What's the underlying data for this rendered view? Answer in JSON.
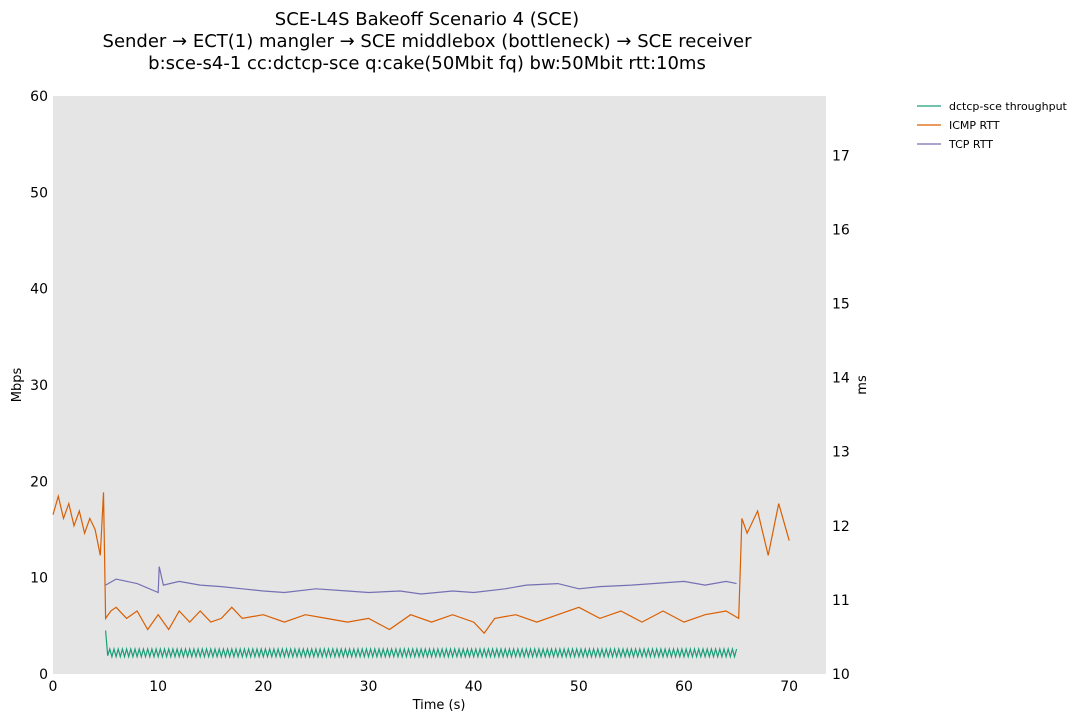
{
  "chart_data": {
    "type": "line",
    "title_lines": [
      "SCE-L4S Bakeoff Scenario 4 (SCE)",
      "Sender → ECT(1) mangler → SCE middlebox (bottleneck) → SCE receiver",
      "b:sce-s4-1 cc:dctcp-sce q:cake(50Mbit fq) bw:50Mbit rtt:10ms"
    ],
    "xlabel": "Time (s)",
    "ylabel_left": "Mbps",
    "ylabel_right": "ms",
    "xlim": [
      0,
      73.5
    ],
    "ylim_left": [
      0,
      60
    ],
    "ylim_right": [
      10,
      17.8
    ],
    "x_ticks": [
      0,
      10,
      20,
      30,
      40,
      50,
      60,
      70
    ],
    "y_ticks_left": [
      0,
      10,
      20,
      30,
      40,
      50,
      60
    ],
    "y_ticks_right": [
      10,
      11,
      12,
      13,
      14,
      15,
      16,
      17
    ],
    "grid": false,
    "legend_position": "outside top-right",
    "background": "#e5e5e5",
    "series": [
      {
        "name": "dctcp-sce throughput",
        "axis": "left",
        "color": "#1b9e77",
        "x_start": 5.0,
        "x_end": 65.0,
        "points": [
          [
            5.0,
            4.5
          ],
          [
            5.2,
            1.9
          ]
        ],
        "oscillation": {
          "low": 1.8,
          "high": 2.6,
          "period_s": 0.4
        }
      },
      {
        "name": "ICMP RTT",
        "axis": "right",
        "color": "#d95f02",
        "points": [
          [
            0,
            12.15
          ],
          [
            0.5,
            12.4
          ],
          [
            1,
            12.1
          ],
          [
            1.5,
            12.3
          ],
          [
            2,
            12.0
          ],
          [
            2.5,
            12.2
          ],
          [
            3,
            11.9
          ],
          [
            3.5,
            12.1
          ],
          [
            4,
            11.95
          ],
          [
            4.5,
            11.6
          ],
          [
            4.8,
            12.45
          ],
          [
            5.0,
            10.75
          ],
          [
            5.5,
            10.85
          ],
          [
            6,
            10.9
          ],
          [
            7,
            10.75
          ],
          [
            8,
            10.85
          ],
          [
            9,
            10.6
          ],
          [
            10,
            10.8
          ],
          [
            11,
            10.6
          ],
          [
            12,
            10.85
          ],
          [
            13,
            10.7
          ],
          [
            14,
            10.85
          ],
          [
            15,
            10.7
          ],
          [
            16,
            10.75
          ],
          [
            17,
            10.9
          ],
          [
            18,
            10.75
          ],
          [
            20,
            10.8
          ],
          [
            22,
            10.7
          ],
          [
            24,
            10.8
          ],
          [
            26,
            10.75
          ],
          [
            28,
            10.7
          ],
          [
            30,
            10.75
          ],
          [
            32,
            10.6
          ],
          [
            34,
            10.8
          ],
          [
            36,
            10.7
          ],
          [
            38,
            10.8
          ],
          [
            40,
            10.7
          ],
          [
            41,
            10.55
          ],
          [
            42,
            10.75
          ],
          [
            44,
            10.8
          ],
          [
            46,
            10.7
          ],
          [
            48,
            10.8
          ],
          [
            50,
            10.9
          ],
          [
            52,
            10.75
          ],
          [
            54,
            10.85
          ],
          [
            56,
            10.7
          ],
          [
            58,
            10.85
          ],
          [
            60,
            10.7
          ],
          [
            62,
            10.8
          ],
          [
            64,
            10.85
          ],
          [
            65.2,
            10.75
          ],
          [
            65.5,
            12.1
          ],
          [
            66,
            11.9
          ],
          [
            67,
            12.2
          ],
          [
            68,
            11.6
          ],
          [
            69,
            12.3
          ],
          [
            70,
            11.8
          ]
        ]
      },
      {
        "name": "TCP RTT",
        "axis": "right",
        "color": "#7570b3",
        "points": [
          [
            5,
            11.2
          ],
          [
            6,
            11.28
          ],
          [
            8,
            11.22
          ],
          [
            10,
            11.1
          ],
          [
            10.1,
            11.45
          ],
          [
            10.5,
            11.2
          ],
          [
            12,
            11.25
          ],
          [
            14,
            11.2
          ],
          [
            16,
            11.18
          ],
          [
            18,
            11.15
          ],
          [
            20,
            11.12
          ],
          [
            22,
            11.1
          ],
          [
            25,
            11.15
          ],
          [
            28,
            11.12
          ],
          [
            30,
            11.1
          ],
          [
            33,
            11.12
          ],
          [
            35,
            11.08
          ],
          [
            38,
            11.12
          ],
          [
            40,
            11.1
          ],
          [
            43,
            11.15
          ],
          [
            45,
            11.2
          ],
          [
            48,
            11.22
          ],
          [
            50,
            11.15
          ],
          [
            52,
            11.18
          ],
          [
            55,
            11.2
          ],
          [
            57,
            11.22
          ],
          [
            60,
            11.25
          ],
          [
            62,
            11.2
          ],
          [
            64,
            11.25
          ],
          [
            65,
            11.22
          ]
        ]
      }
    ]
  }
}
